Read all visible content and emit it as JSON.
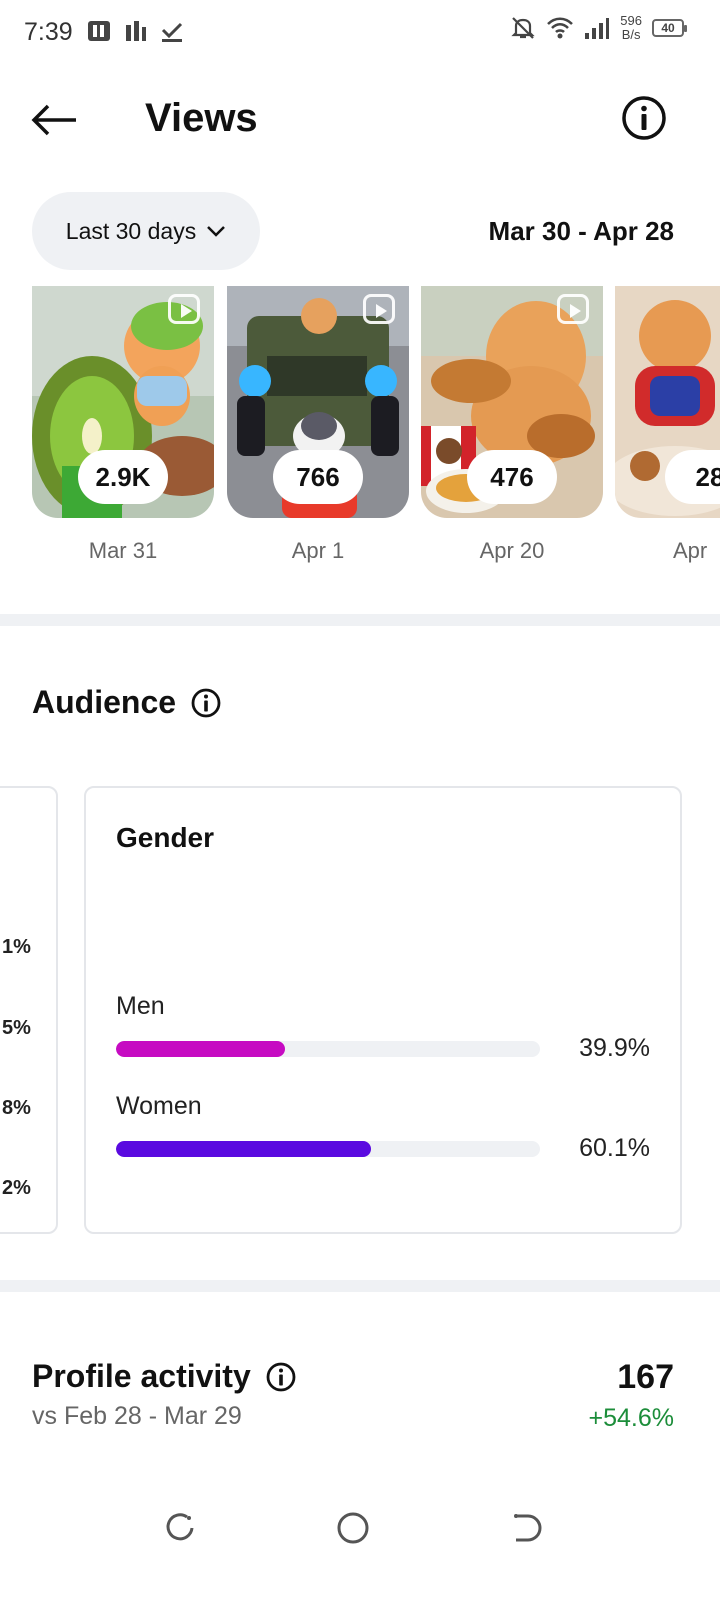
{
  "status_bar": {
    "time": "7:39",
    "net_speed_value": "596",
    "net_speed_unit": "B/s",
    "battery": "40"
  },
  "header": {
    "title": "Views"
  },
  "filter": {
    "range_label": "Last 30 days",
    "date_range": "Mar 30 - Apr 28"
  },
  "reels": [
    {
      "count": "2.9K",
      "date": "Mar 31"
    },
    {
      "count": "766",
      "date": "Apr 1"
    },
    {
      "count": "476",
      "date": "Apr 20"
    },
    {
      "count": "28",
      "date": "Apr"
    }
  ],
  "audience": {
    "title": "Audience",
    "age_percentages": [
      "1%",
      "5%",
      "8%",
      "2%"
    ],
    "gender": {
      "title": "Gender",
      "items": [
        {
          "label": "Men",
          "percent_text": "39.9%",
          "fraction": 0.399,
          "color": "#c60bc2"
        },
        {
          "label": "Women",
          "percent_text": "60.1%",
          "fraction": 0.601,
          "color": "#5a0ae0"
        }
      ]
    }
  },
  "profile_activity": {
    "title": "Profile activity",
    "comparison": "vs Feb 28 - Mar 29",
    "value": "167",
    "change": "+54.6%"
  }
}
